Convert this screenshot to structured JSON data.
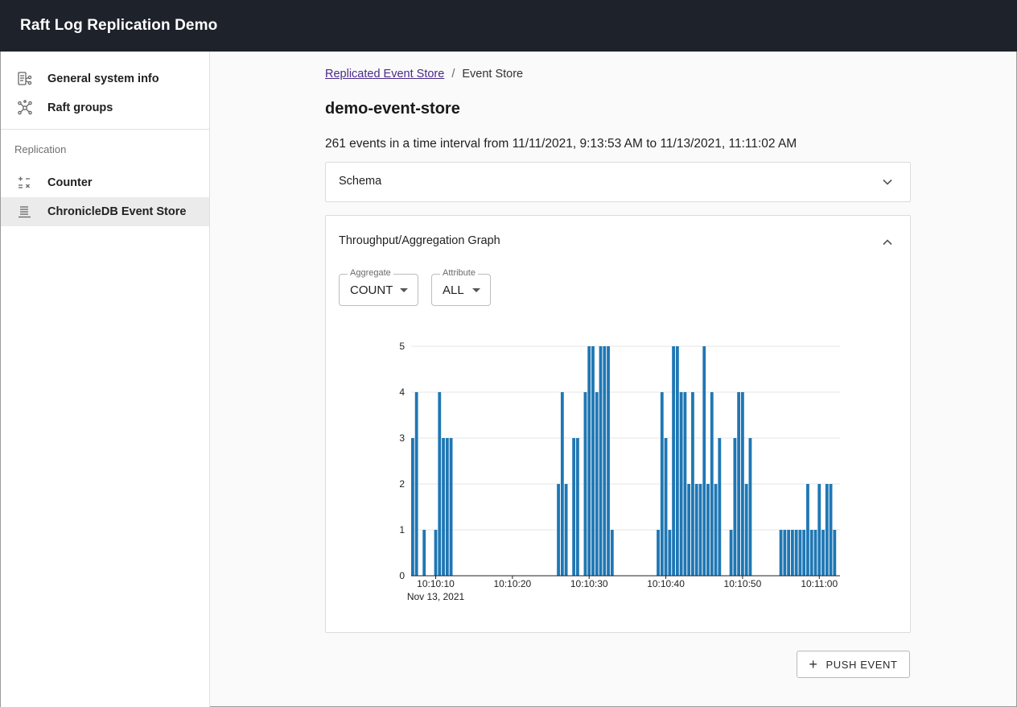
{
  "app": {
    "title": "Raft Log Replication Demo"
  },
  "sidebar": {
    "items": [
      {
        "label": "General system info",
        "icon": "system-info-icon"
      },
      {
        "label": "Raft groups",
        "icon": "graph-nodes-icon"
      }
    ],
    "section_label": "Replication",
    "replication_items": [
      {
        "label": "Counter",
        "icon": "calculator-icon"
      },
      {
        "label": "ChronicleDB Event Store",
        "icon": "list-lines-icon",
        "active": true
      }
    ]
  },
  "breadcrumb": {
    "link": "Replicated Event Store",
    "separator": "/",
    "current": "Event Store"
  },
  "page": {
    "title": "demo-event-store",
    "summary": "261 events in a time interval from 11/11/2021, 9:13:53 AM to 11/13/2021, 11:11:02 AM"
  },
  "schema_panel": {
    "title": "Schema",
    "icon": "chevron-down-icon"
  },
  "graph_panel": {
    "title": "Throughput/Aggregation Graph",
    "icon": "chevron-up-icon",
    "aggregate": {
      "label": "Aggregate",
      "value": "COUNT"
    },
    "attribute": {
      "label": "Attribute",
      "value": "ALL"
    }
  },
  "push_button": {
    "label": "PUSH EVENT",
    "icon": "plus-icon"
  },
  "colors": {
    "bar": "#1f77b4",
    "appbar": "#1e222b",
    "link": "#4a2a8a"
  },
  "chart_data": {
    "type": "bar",
    "y_ticks": [
      "0",
      "1",
      "2",
      "3",
      "4",
      "5"
    ],
    "x_ticks": [
      "10:10:10",
      "10:10:20",
      "10:10:30",
      "10:10:40",
      "10:10:50",
      "10:11:00"
    ],
    "x_subtitle": "Nov 13, 2021",
    "ylim": [
      0,
      5
    ],
    "series": [
      {
        "bins": [
          {
            "t": "10:10:07",
            "v": 3
          },
          {
            "t": "10:10:07.5",
            "v": 4
          },
          {
            "t": "10:10:08.5",
            "v": 1
          },
          {
            "t": "10:10:10",
            "v": 1
          },
          {
            "t": "10:10:10.5",
            "v": 4
          },
          {
            "t": "10:10:11",
            "v": 3
          },
          {
            "t": "10:10:11.5",
            "v": 3
          },
          {
            "t": "10:10:12",
            "v": 3
          },
          {
            "t": "10:10:26",
            "v": 2
          },
          {
            "t": "10:10:26.5",
            "v": 4
          },
          {
            "t": "10:10:27",
            "v": 2
          },
          {
            "t": "10:10:28",
            "v": 3
          },
          {
            "t": "10:10:28.5",
            "v": 3
          },
          {
            "t": "10:10:29.5",
            "v": 4
          },
          {
            "t": "10:10:30",
            "v": 5
          },
          {
            "t": "10:10:30.5",
            "v": 5
          },
          {
            "t": "10:10:31",
            "v": 4
          },
          {
            "t": "10:10:31.5",
            "v": 5
          },
          {
            "t": "10:10:32",
            "v": 5
          },
          {
            "t": "10:10:32.5",
            "v": 5
          },
          {
            "t": "10:10:33",
            "v": 1
          },
          {
            "t": "10:10:39",
            "v": 1
          },
          {
            "t": "10:10:39.5",
            "v": 4
          },
          {
            "t": "10:10:40",
            "v": 3
          },
          {
            "t": "10:10:40.5",
            "v": 1
          },
          {
            "t": "10:10:41",
            "v": 5
          },
          {
            "t": "10:10:41.5",
            "v": 5
          },
          {
            "t": "10:10:42",
            "v": 4
          },
          {
            "t": "10:10:42.5",
            "v": 4
          },
          {
            "t": "10:10:43",
            "v": 2
          },
          {
            "t": "10:10:43.5",
            "v": 4
          },
          {
            "t": "10:10:44",
            "v": 2
          },
          {
            "t": "10:10:44.5",
            "v": 2
          },
          {
            "t": "10:10:45",
            "v": 5
          },
          {
            "t": "10:10:45.5",
            "v": 2
          },
          {
            "t": "10:10:46",
            "v": 4
          },
          {
            "t": "10:10:46.5",
            "v": 2
          },
          {
            "t": "10:10:47",
            "v": 3
          },
          {
            "t": "10:10:48.5",
            "v": 1
          },
          {
            "t": "10:10:49",
            "v": 3
          },
          {
            "t": "10:10:49.5",
            "v": 4
          },
          {
            "t": "10:10:50",
            "v": 4
          },
          {
            "t": "10:10:50.5",
            "v": 2
          },
          {
            "t": "10:10:51",
            "v": 3
          },
          {
            "t": "10:10:55",
            "v": 1
          },
          {
            "t": "10:10:55.5",
            "v": 1
          },
          {
            "t": "10:10:56",
            "v": 1
          },
          {
            "t": "10:10:56.5",
            "v": 1
          },
          {
            "t": "10:10:57",
            "v": 1
          },
          {
            "t": "10:10:57.5",
            "v": 1
          },
          {
            "t": "10:10:58",
            "v": 1
          },
          {
            "t": "10:10:58.5",
            "v": 2
          },
          {
            "t": "10:10:59",
            "v": 1
          },
          {
            "t": "10:10:59.5",
            "v": 1
          },
          {
            "t": "10:11:00",
            "v": 2
          },
          {
            "t": "10:11:00.5",
            "v": 1
          },
          {
            "t": "10:11:01",
            "v": 2
          },
          {
            "t": "10:11:01.5",
            "v": 2
          },
          {
            "t": "10:11:02",
            "v": 1
          }
        ]
      }
    ]
  }
}
